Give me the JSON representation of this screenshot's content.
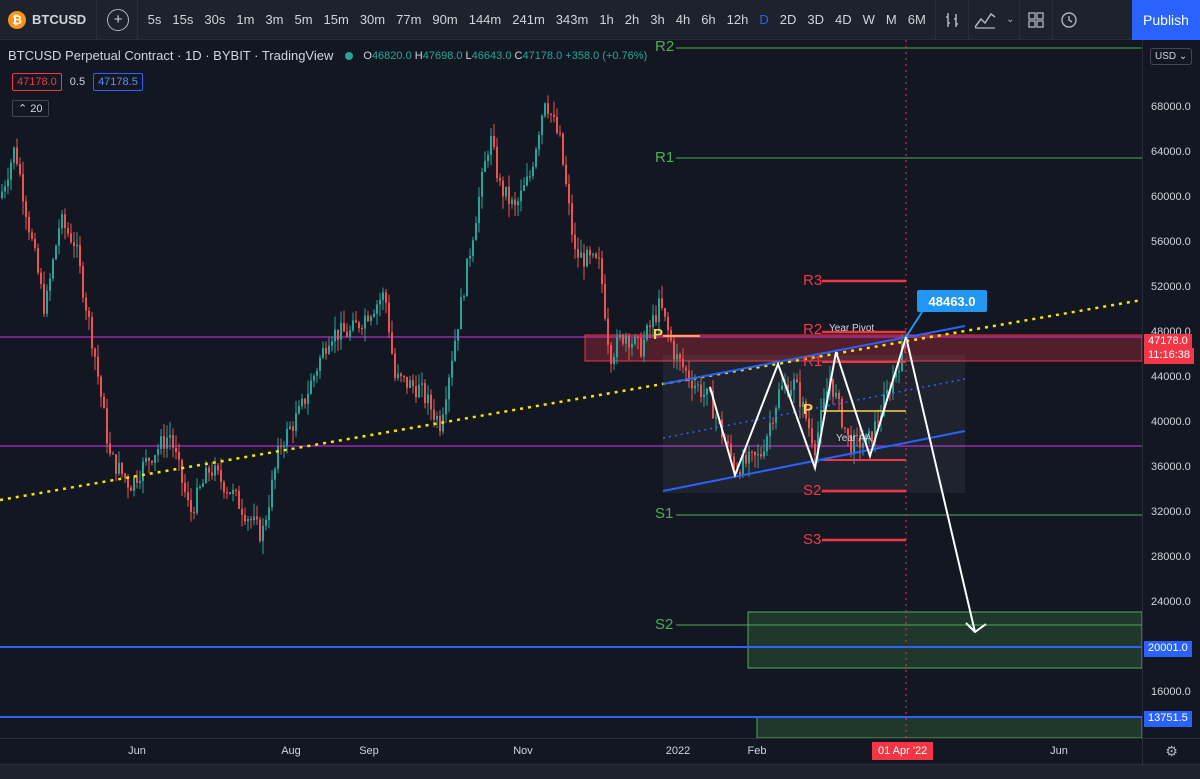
{
  "toolbar": {
    "symbol": "BTCUSD",
    "intervals": [
      "5s",
      "15s",
      "30s",
      "1m",
      "3m",
      "5m",
      "15m",
      "30m",
      "77m",
      "90m",
      "144m",
      "241m",
      "343m",
      "1h",
      "2h",
      "3h",
      "4h",
      "6h",
      "12h",
      "D",
      "2D",
      "3D",
      "4D",
      "W",
      "M",
      "6M"
    ],
    "active_interval": "D",
    "publish_label": "Publish"
  },
  "legend": {
    "title": "BTCUSD Perpetual Contract · 1D · BYBIT · TradingView",
    "o_label": "O",
    "o": "46820.0",
    "h_label": "H",
    "h": "47698.0",
    "l_label": "L",
    "l": "46643.0",
    "c_label": "C",
    "c": "47178.0",
    "change": "+358.0 (+0.76%)",
    "bid": "47178.0",
    "spread": "0.5",
    "ask": "47178.5",
    "indicator_count": "20"
  },
  "levels": {
    "r2_top": "R2",
    "r1": "R1",
    "s1": "S1",
    "s2": "S2",
    "r3_red": "R3",
    "r2_red": "R2",
    "r1_red": "R1",
    "s2_red": "S2",
    "s3_red": "S3",
    "p_left": "P",
    "p_mid": "P",
    "year_pivot": "Year Pivot",
    "year_label": "Year AA"
  },
  "callout_value": "48463.0",
  "price_axis": {
    "currency": "USD",
    "ticks": [
      "68000.0",
      "64000.0",
      "60000.0",
      "56000.0",
      "52000.0",
      "48000.0",
      "44000.0",
      "40000.0",
      "36000.0",
      "32000.0",
      "28000.0",
      "24000.0",
      "16000.0"
    ],
    "last_price": "47178.0",
    "countdown": "11:16:38",
    "label_blue": "20001.0",
    "label_blue2": "13751.5"
  },
  "time_axis": {
    "ticks": [
      "Jun",
      "Aug",
      "Sep",
      "Nov",
      "2022",
      "Feb",
      "Jun"
    ],
    "cursor_date": "01 Apr '22"
  },
  "colors": {
    "up": "#26a69a",
    "down": "#ef5350",
    "green_level": "#4caf50",
    "red_level": "#f23645",
    "trend_blue": "#2962ff",
    "magenta": "#9c27b0",
    "yellow": "#f7e600"
  },
  "icons": [
    "bitcoin-logo",
    "add-symbol-icon",
    "bar-style-icon",
    "indicators-icon",
    "layout-icon",
    "alert-icon",
    "settings-icon"
  ]
}
